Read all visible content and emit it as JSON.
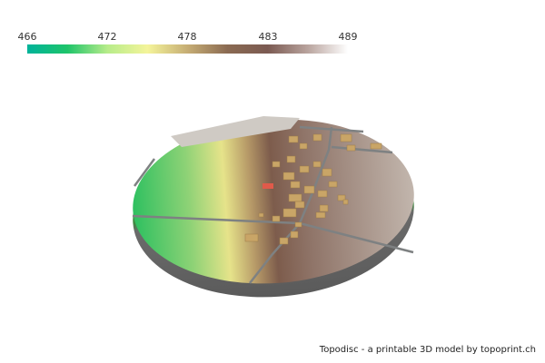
{
  "legend": {
    "ticks": [
      "466",
      "472",
      "478",
      "483",
      "489"
    ],
    "tick_positions_pct": [
      0,
      25,
      50,
      75,
      100
    ],
    "gradient": [
      "#00b39a",
      "#1ec46a",
      "#b7ec8a",
      "#f4f49a",
      "#c6ad74",
      "#8a6a52",
      "#7b5a52",
      "#b9a49e",
      "#ffffff"
    ]
  },
  "footer": {
    "credit": "Topodisc - a printable 3D model by topoprint.ch"
  },
  "colors": {
    "building": "#c9a567",
    "highlight_building": "#e05a4a",
    "road": "#7e8182",
    "base": "#6b6b6b"
  }
}
